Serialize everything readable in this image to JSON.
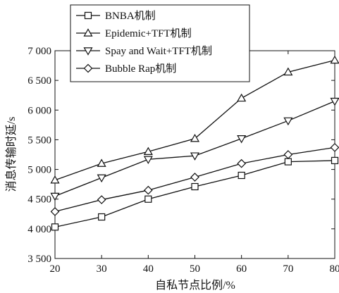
{
  "chart_data": {
    "type": "line",
    "x": [
      20,
      30,
      40,
      50,
      60,
      70,
      80
    ],
    "xlim": [
      20,
      80
    ],
    "ylim": [
      3500,
      7000
    ],
    "xlabel": "自私节点比例/%",
    "ylabel": "消息传输时延/s",
    "x_ticks": [
      20,
      30,
      40,
      50,
      60,
      70,
      80
    ],
    "x_tick_labels": [
      "20",
      "30",
      "40",
      "50",
      "60",
      "70",
      "80"
    ],
    "y_ticks": [
      3500,
      4000,
      4500,
      5000,
      5500,
      6000,
      6500,
      7000
    ],
    "y_tick_labels": [
      "3 500",
      "4 000",
      "4 500",
      "5 000",
      "5 500",
      "6 000",
      "6 500",
      "7 000"
    ],
    "grid": false,
    "legend_position": "top-left",
    "series": [
      {
        "name": "BNBA机制",
        "marker": "square",
        "values": [
          4030,
          4200,
          4500,
          4710,
          4900,
          5130,
          5150
        ]
      },
      {
        "name": "Epidemic+TFT机制",
        "marker": "triangle-up",
        "values": [
          4820,
          5100,
          5300,
          5520,
          6200,
          6640,
          6840
        ]
      },
      {
        "name": "Spay and Wait+TFT机制",
        "marker": "triangle-down",
        "values": [
          4550,
          4860,
          5170,
          5230,
          5520,
          5820,
          6150
        ]
      },
      {
        "name": "Bubble Rap机制",
        "marker": "diamond",
        "values": [
          4290,
          4490,
          4650,
          4870,
          5100,
          5250,
          5370
        ]
      }
    ],
    "colors": {
      "line": "#111111",
      "marker_fill": "#ffffff",
      "background": "#ffffff"
    }
  }
}
